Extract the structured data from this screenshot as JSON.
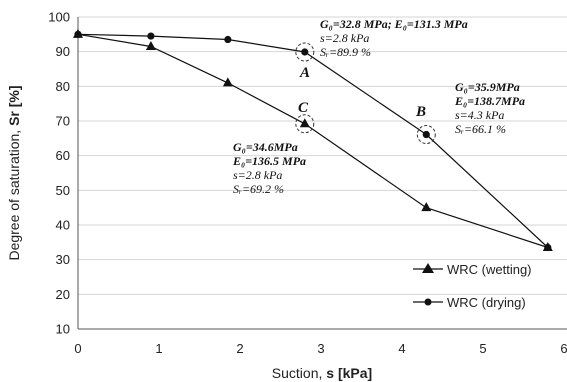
{
  "chart_data": {
    "type": "line",
    "xlabel_prefix": "Suction, ",
    "xlabel_bold": "s [kPa]",
    "ylabel_prefix": "Degree of saturation, ",
    "ylabel_bold": "Sr [%]",
    "xlim": [
      0,
      6
    ],
    "ylim": [
      10,
      100
    ],
    "x_ticks": [
      "0",
      "1",
      "2",
      "3",
      "4",
      "5",
      "6"
    ],
    "y_ticks": [
      "10",
      "20",
      "30",
      "40",
      "50",
      "60",
      "70",
      "80",
      "90",
      "100"
    ],
    "grid": "horizontal",
    "legend_position": "bottom-right",
    "series": [
      {
        "name": "WRC (wetting)",
        "marker": "triangle",
        "x": [
          0,
          0.9,
          1.85,
          2.8,
          4.3,
          5.8
        ],
        "y": [
          95,
          91.5,
          81,
          69.2,
          45,
          33.5
        ]
      },
      {
        "name": "WRC (drying)",
        "marker": "circle",
        "x": [
          0,
          0.9,
          1.85,
          2.8,
          4.3,
          5.8
        ],
        "y": [
          95,
          94.5,
          93.5,
          89.9,
          66.1,
          33.5
        ]
      }
    ],
    "points": [
      {
        "label": "A",
        "x": 2.8,
        "y": 89.9
      },
      {
        "label": "B",
        "x": 4.3,
        "y": 66.1
      },
      {
        "label": "C",
        "x": 2.8,
        "y": 69.2
      }
    ],
    "annotations": [
      {
        "id": "A",
        "line1": "G₀=32.8 MPa; E₀=131.3 MPa",
        "line2": "s=2.8 kPa",
        "line3": "Sᵣ=89.9 %"
      },
      {
        "id": "B",
        "line1": "G₀=35.9MPa",
        "line2": "E₀=138.7MPa",
        "line3": "s=4.3 kPa",
        "line4": "Sᵣ=66.1 %"
      },
      {
        "id": "C",
        "line1": "G₀=34.6MPa",
        "line2": "E₀=136.5 MPa",
        "line3": "s=2.8 kPa",
        "line4": "Sᵣ=69.2 %"
      }
    ]
  }
}
